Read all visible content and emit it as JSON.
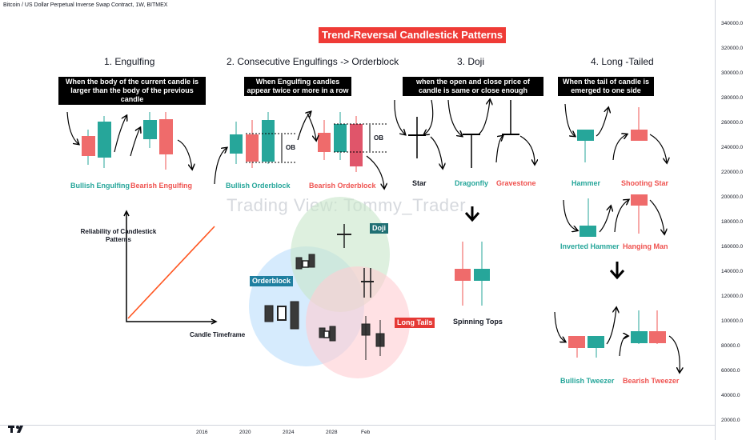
{
  "header": {
    "symbol": "Bitcoin / US Dollar Perpetual Inverse Swap Contract, 1W, BITMEX"
  },
  "banner": {
    "title": "Trend-Reversal Candlestick Patterns"
  },
  "sections": [
    {
      "title": "1. Engulfing",
      "desc": "When the body of the current candle is larger than the body of the previous candle"
    },
    {
      "title": "2. Consecutive Engulfings -> Orderblock",
      "desc": "When Engulfing candles appear twice or more in a row"
    },
    {
      "title": "3. Doji",
      "desc": "when the open and close price of candle is same or close enough"
    },
    {
      "title": "4. Long -Tailed",
      "desc": "When the tail of candle is emerged to one side"
    }
  ],
  "labels": {
    "bullish_engulfing": "Bullish Engulfing",
    "bearish_engulfing": "Bearish Engulfing",
    "bullish_orderblock": "Bullish Orderblock",
    "bearish_orderblock": "Bearish Orderblock",
    "ob": "OB",
    "star": "Star",
    "dragonfly": "Dragonfly",
    "gravestone": "Gravestone",
    "hammer": "Hammer",
    "shooting_star": "Shooting Star",
    "inverted_hammer": "Inverted Hammer",
    "hanging_man": "Hanging Man",
    "spinning_tops": "Spinning Tops",
    "bullish_tweezer": "Bullish Tweezer",
    "bearish_tweezer": "Bearish Tweezer",
    "doji_badge": "Doji",
    "orderblock_badge": "Orderblock",
    "long_tails_badge": "Long Tails",
    "reliability": "Reliability of Candlestick Patterns",
    "candle_timeframe": "Candle Timeframe"
  },
  "watermark": "Trading View: Tommy_Trader",
  "colors": {
    "bull": "#26a69a",
    "bear": "#ef5350",
    "banner": "#ef3b36",
    "doji_badge": "#1f6f73",
    "orderblock_badge": "#1f7fa0",
    "long_tails_badge": "#e53935"
  },
  "chart_data": {
    "type": "line",
    "y_axis": {
      "ticks": [
        "340000.0",
        "320000.0",
        "300000.0",
        "280000.0",
        "260000.0",
        "240000.0",
        "220000.0",
        "200000.0",
        "180000.0",
        "160000.0",
        "140000.0",
        "120000.0",
        "100000.0",
        "80000.0",
        "60000.0",
        "40000.0",
        "20000.0"
      ]
    },
    "x_axis": {
      "ticks": [
        "2016",
        "2020",
        "2024",
        "2028",
        "Feb"
      ]
    },
    "reliability_chart": {
      "x": [
        0,
        1
      ],
      "y": [
        0,
        1
      ],
      "xlabel": "Candle Timeframe",
      "ylabel": "Reliability of Candlestick Patterns"
    }
  }
}
